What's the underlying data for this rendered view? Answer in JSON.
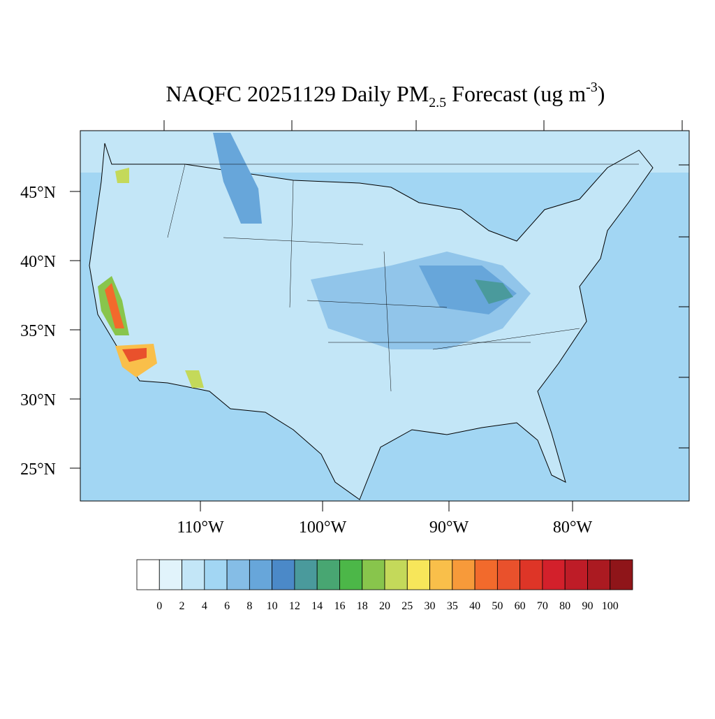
{
  "title": {
    "prefix": "NAQFC 20251129 Daily PM",
    "subscript": "2.5",
    "middle": "Forecast (ug m",
    "superscript": "-3",
    "suffix": ")"
  },
  "map": {
    "lat_labels": [
      "45°N",
      "40°N",
      "35°N",
      "30°N",
      "25°N"
    ],
    "lon_labels": [
      "110°W",
      "100°W",
      "90°W",
      "80°W"
    ]
  },
  "colorbar": {
    "colors": [
      "#ffffff",
      "#e1f3fb",
      "#c3e6f7",
      "#a2d6f3",
      "#85bde6",
      "#67a6da",
      "#4b89c8",
      "#4a9a9c",
      "#48a672",
      "#4cb748",
      "#88c54c",
      "#c4d95a",
      "#f7e65a",
      "#f9bf4a",
      "#f79a3a",
      "#f26a2c",
      "#e9512c",
      "#de3527",
      "#d3202b",
      "#be1c27",
      "#ab1a21",
      "#8f1519"
    ],
    "labels": [
      0,
      2,
      4,
      6,
      8,
      10,
      12,
      14,
      16,
      18,
      20,
      25,
      30,
      35,
      40,
      50,
      60,
      70,
      80,
      90,
      100
    ]
  }
}
